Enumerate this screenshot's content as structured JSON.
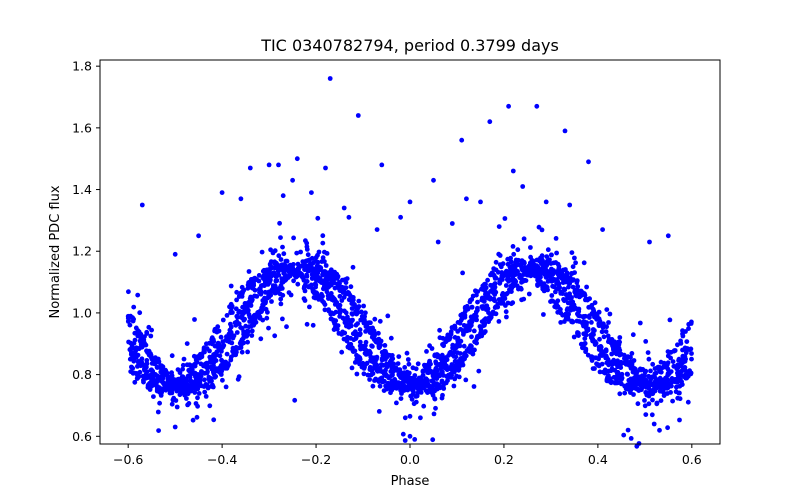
{
  "chart_data": {
    "type": "scatter",
    "title": "TIC 0340782794, period 0.3799 days",
    "xlabel": "Phase",
    "ylabel": "Normalized PDC flux",
    "xlim": [
      -0.66,
      0.66
    ],
    "ylim": [
      0.575,
      1.82
    ],
    "xticks": [
      -0.6,
      -0.4,
      -0.2,
      0.0,
      0.2,
      0.4,
      0.6
    ],
    "xtick_labels": [
      "−0.6",
      "−0.4",
      "−0.2",
      "0.0",
      "0.2",
      "0.4",
      "0.6"
    ],
    "yticks": [
      0.6,
      0.8,
      1.0,
      1.2,
      1.4,
      1.6,
      1.8
    ],
    "ytick_labels": [
      "0.6",
      "0.8",
      "1.0",
      "1.2",
      "1.4",
      "1.6",
      "1.8"
    ],
    "grid": false,
    "marker_color": "#0000ff",
    "outliers": [
      {
        "x": -0.57,
        "y": 1.35
      },
      {
        "x": -0.5,
        "y": 1.19
      },
      {
        "x": -0.45,
        "y": 1.25
      },
      {
        "x": -0.4,
        "y": 1.39
      },
      {
        "x": -0.36,
        "y": 1.37
      },
      {
        "x": -0.34,
        "y": 1.47
      },
      {
        "x": -0.3,
        "y": 1.48
      },
      {
        "x": -0.28,
        "y": 1.48
      },
      {
        "x": -0.27,
        "y": 1.38
      },
      {
        "x": -0.25,
        "y": 1.43
      },
      {
        "x": -0.24,
        "y": 1.5
      },
      {
        "x": -0.21,
        "y": 1.39
      },
      {
        "x": -0.18,
        "y": 1.47
      },
      {
        "x": -0.17,
        "y": 1.76
      },
      {
        "x": -0.14,
        "y": 1.34
      },
      {
        "x": -0.13,
        "y": 1.31
      },
      {
        "x": -0.11,
        "y": 1.64
      },
      {
        "x": -0.07,
        "y": 1.27
      },
      {
        "x": -0.06,
        "y": 1.48
      },
      {
        "x": -0.02,
        "y": 1.31
      },
      {
        "x": 0.0,
        "y": 1.36
      },
      {
        "x": 0.05,
        "y": 1.43
      },
      {
        "x": 0.06,
        "y": 1.23
      },
      {
        "x": 0.09,
        "y": 1.29
      },
      {
        "x": 0.11,
        "y": 1.56
      },
      {
        "x": 0.12,
        "y": 1.37
      },
      {
        "x": 0.15,
        "y": 1.36
      },
      {
        "x": 0.17,
        "y": 1.62
      },
      {
        "x": 0.19,
        "y": 1.28
      },
      {
        "x": 0.21,
        "y": 1.67
      },
      {
        "x": 0.22,
        "y": 1.46
      },
      {
        "x": 0.24,
        "y": 1.41
      },
      {
        "x": 0.27,
        "y": 1.67
      },
      {
        "x": 0.29,
        "y": 1.36
      },
      {
        "x": 0.33,
        "y": 1.59
      },
      {
        "x": 0.34,
        "y": 1.35
      },
      {
        "x": 0.38,
        "y": 1.49
      },
      {
        "x": 0.41,
        "y": 1.27
      },
      {
        "x": 0.51,
        "y": 1.23
      },
      {
        "x": 0.55,
        "y": 1.25
      },
      {
        "x": 0.0,
        "y": 0.6
      },
      {
        "x": 0.01,
        "y": 0.59
      },
      {
        "x": -0.5,
        "y": 0.63
      },
      {
        "x": 0.52,
        "y": 0.64
      },
      {
        "x": -0.01,
        "y": 0.66
      }
    ]
  }
}
